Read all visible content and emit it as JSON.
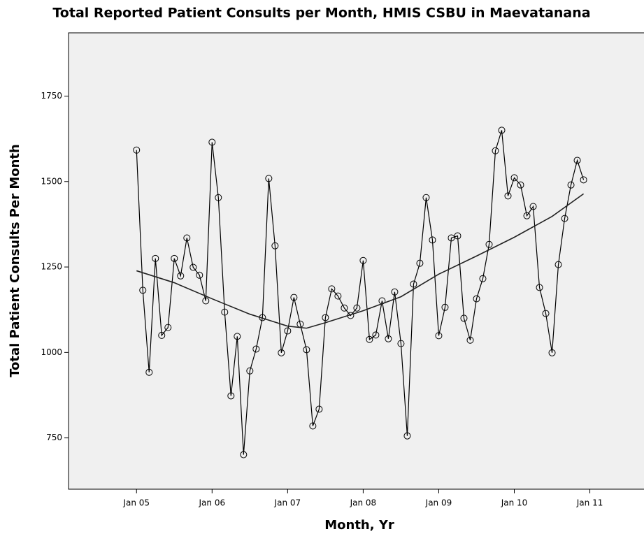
{
  "chart_data": {
    "type": "line",
    "title": "Total Reported Patient Consults per Month, HMIS CSBU in Maevatanana",
    "xlabel": "Month, Yr",
    "ylabel": "Total Patient Consults Per Month",
    "xlim": [
      -10.8,
      80.6
    ],
    "xticks": [
      {
        "value": 0,
        "label": "Jan 05"
      },
      {
        "value": 12,
        "label": "Jan 06"
      },
      {
        "value": 24,
        "label": "Jan 07"
      },
      {
        "value": 36,
        "label": "Jan 08"
      },
      {
        "value": 48,
        "label": "Jan 09"
      },
      {
        "value": 60,
        "label": "Jan 10"
      },
      {
        "value": 72,
        "label": "Jan 11"
      }
    ],
    "ylim": [
      600,
      1935
    ],
    "yticks": [
      750,
      1000,
      1250,
      1500,
      1750
    ],
    "background": "#f0f0f0",
    "series": [
      {
        "color": "#000000",
        "marker": "circle",
        "x": [
          0,
          1,
          2,
          3,
          4,
          5,
          6,
          7,
          8,
          9,
          10,
          11,
          12,
          13,
          14,
          15,
          16,
          17,
          18,
          19,
          20,
          21,
          22,
          23,
          24,
          25,
          26,
          27,
          28,
          29,
          30,
          31,
          32,
          33,
          34,
          35,
          36,
          37,
          38,
          39,
          40,
          41,
          42,
          43,
          44,
          45,
          46,
          47,
          48,
          49,
          50,
          51,
          52,
          53,
          54,
          55,
          56,
          57,
          58,
          59,
          60,
          61,
          62,
          63,
          64,
          65,
          66,
          67,
          68,
          69,
          70,
          71
        ],
        "values": [
          1592,
          1182,
          942,
          1275,
          1050,
          1073,
          1275,
          1224,
          1335,
          1249,
          1226,
          1151,
          1615,
          1453,
          1118,
          873,
          1047,
          701,
          946,
          1010,
          1102,
          1509,
          1312,
          999,
          1063,
          1161,
          1083,
          1008,
          785,
          834,
          1102,
          1186,
          1165,
          1130,
          1108,
          1130,
          1269,
          1038,
          1051,
          1151,
          1040,
          1177,
          1026,
          756,
          1200,
          1261,
          1453,
          1329,
          1049,
          1132,
          1335,
          1341,
          1100,
          1036,
          1157,
          1216,
          1316,
          1590,
          1650,
          1458,
          1511,
          1490,
          1400,
          1427,
          1190,
          1114,
          999,
          1257,
          1392,
          1490,
          1562,
          1505
        ]
      },
      {
        "color": "#222222",
        "x": [
          0,
          6,
          12,
          18,
          24,
          27,
          30,
          36,
          42,
          48,
          54,
          60,
          66,
          71
        ],
        "values": [
          1239,
          1204,
          1157,
          1112,
          1077,
          1071,
          1087,
          1122,
          1163,
          1229,
          1282,
          1337,
          1398,
          1464
        ]
      }
    ]
  }
}
